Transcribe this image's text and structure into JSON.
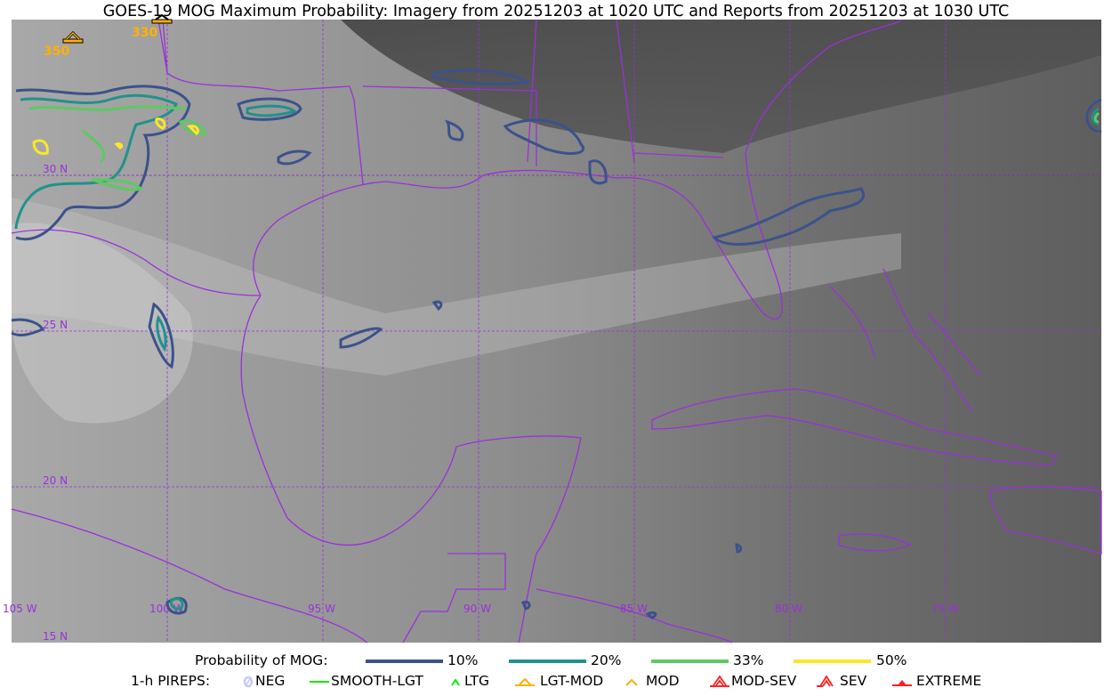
{
  "title": "GOES-19 MOG Maximum Probability: Imagery from 20251203 at 1020 UTC and Reports from 20251203 at 1030 UTC",
  "map": {
    "lon_labels": [
      "105 W",
      "100 W",
      "95 W",
      "90 W",
      "85 W",
      "80 W",
      "75 W"
    ],
    "lat_labels": [
      "30 N",
      "25 N",
      "20 N",
      "15 N"
    ],
    "boundary_color": "#9b30d9",
    "pireps": [
      {
        "altitude": "350",
        "category": "LGT-MOD"
      },
      {
        "altitude": "330",
        "category": "LGT-MOD"
      }
    ]
  },
  "legend": {
    "probability_label": "Probability of MOG:",
    "probability_levels": [
      {
        "label": "10%",
        "color": "#3b528b"
      },
      {
        "label": "20%",
        "color": "#21918c"
      },
      {
        "label": "33%",
        "color": "#5ec962"
      },
      {
        "label": "50%",
        "color": "#fde725"
      }
    ],
    "pireps_label": "1-h PIREPS:",
    "pirep_categories": [
      {
        "label": "NEG",
        "color": "#c8c8ff",
        "icon": "neg-circle-icon"
      },
      {
        "label": "SMOOTH-LGT",
        "color": "#00ee00",
        "icon": "line-icon"
      },
      {
        "label": "LTG",
        "color": "#00ee00",
        "icon": "caret-icon"
      },
      {
        "label": "LGT-MOD",
        "color": "#ffb000",
        "icon": "caret-bar-icon"
      },
      {
        "label": "MOD",
        "color": "#ffb000",
        "icon": "caret-icon"
      },
      {
        "label": "MOD-SEV",
        "color": "#ff2020",
        "icon": "double-caret-bar-icon"
      },
      {
        "label": "SEV",
        "color": "#ff2020",
        "icon": "double-caret-icon"
      },
      {
        "label": "EXTREME",
        "color": "#ff2020",
        "icon": "filled-triangle-icon"
      }
    ]
  }
}
